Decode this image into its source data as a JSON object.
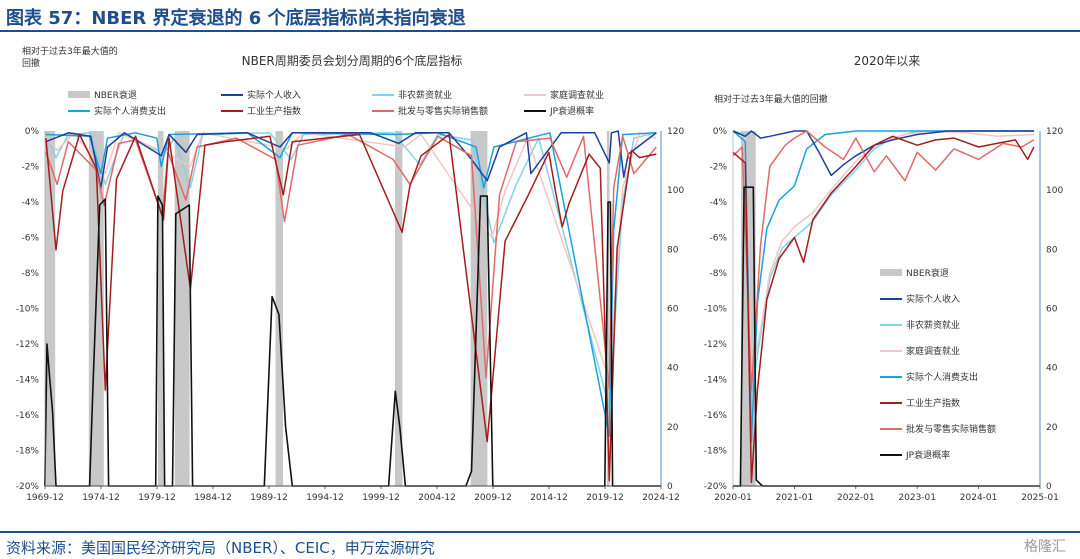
{
  "title": "图表 57：NBER 界定衰退的 6 个底层指标尚未指向衰退",
  "source": "资料来源：美国国民经济研究局（NBER）、CEIC，申万宏源研究",
  "watermark": "格隆汇",
  "colors": {
    "title": "#1f4e8c",
    "recession": "#c8c8c8",
    "income": "#1f3f99",
    "payroll": "#7fd3ea",
    "household": "#f3c6c2",
    "consumption": "#19a3dc",
    "industrial": "#a51c1c",
    "sales": "#e06a6a",
    "jp": "#111111",
    "right_axis": "#2b6fb5"
  },
  "chart_data": [
    {
      "type": "line",
      "title": "NBER周期委员会划分周期的6个底层指标",
      "left_axis_title_line1": "相对于过去3年最大值的",
      "left_axis_title_line2": "回撤",
      "ylim": [
        -20,
        0
      ],
      "y_ticks": [
        "0%",
        "-2%",
        "-4%",
        "-6%",
        "-8%",
        "-10%",
        "-12%",
        "-14%",
        "-16%",
        "-18%",
        "-20%"
      ],
      "y2lim": [
        0,
        120
      ],
      "y2_ticks": [
        "120",
        "100",
        "80",
        "60",
        "40",
        "20",
        "0"
      ],
      "x_range": [
        1969.92,
        2024.92
      ],
      "x_ticks": [
        "1969-12",
        "1974-12",
        "1979-12",
        "1984-12",
        "1989-12",
        "1994-12",
        "1999-12",
        "2004-12",
        "2009-12",
        "2014-12",
        "2019-12",
        "2024-12"
      ],
      "x_tick_values": [
        1969.92,
        1974.92,
        1979.92,
        1984.92,
        1989.92,
        1994.92,
        1999.92,
        2004.92,
        2009.92,
        2014.92,
        2019.92,
        2024.92
      ],
      "legend": [
        "NBER衰退",
        "实际个人收入",
        "非农薪资就业",
        "家庭调查就业",
        "实际个人消费支出",
        "工业生产指数",
        "批发与零售实际销售额",
        "JP衰退概率"
      ],
      "recessions": [
        [
          1969.92,
          1970.83
        ],
        [
          1973.83,
          1975.17
        ],
        [
          1980.0,
          1980.5
        ],
        [
          1981.5,
          1982.83
        ],
        [
          1990.5,
          1991.17
        ],
        [
          2001.17,
          2001.83
        ],
        [
          2007.92,
          2009.42
        ],
        [
          2020.08,
          2020.33
        ]
      ],
      "series": [
        {
          "name": "实际个人收入",
          "key": "income",
          "axis": "left",
          "x": [
            1970,
            1972,
            1974,
            1974.9,
            1975.5,
            1977,
            1980.3,
            1981,
            1982.5,
            1983.5,
            1988,
            1990.9,
            1992,
            1999,
            2001.5,
            2003,
            2006,
            2008,
            2009.4,
            2010.5,
            2012.9,
            2013.3,
            2016,
            2019,
            2020.3,
            2020.5,
            2021.1,
            2021.6,
            2022,
            2024.5
          ],
          "values": [
            -0.6,
            -0.1,
            -0.3,
            -3.2,
            -0.9,
            -0.1,
            -1.4,
            -0.2,
            -1.2,
            -0.2,
            -0.1,
            -0.9,
            -0.1,
            -0.1,
            -0.7,
            -0.1,
            -0.1,
            -1.6,
            -2.8,
            -0.9,
            -0.1,
            -2.4,
            -0.1,
            -0.1,
            -1.8,
            -0.1,
            0,
            -2.6,
            -1.3,
            -0.1
          ]
        },
        {
          "name": "非农薪资就业",
          "key": "payroll",
          "axis": "left",
          "x": [
            1970,
            1970.9,
            1972,
            1974,
            1975.3,
            1977,
            1980.5,
            1981.5,
            1982.9,
            1984,
            1990,
            1991.9,
            1993,
            2001,
            2003.4,
            2005,
            2008,
            2010.0,
            2012,
            2014,
            2020.3,
            2021.5,
            2022.5,
            2024.5
          ],
          "values": [
            -0.1,
            -1.5,
            -0.2,
            -0.1,
            -3.0,
            -0.1,
            -1.3,
            -0.4,
            -3.2,
            -0.2,
            -0.1,
            -1.6,
            -0.2,
            -0.1,
            -1.9,
            -0.2,
            -0.5,
            -6.3,
            -3.0,
            -0.4,
            -15.6,
            -4.0,
            -0.4,
            -0.1
          ]
        },
        {
          "name": "家庭调查就业",
          "key": "household",
          "axis": "left",
          "x": [
            1970,
            1971,
            1972.5,
            1975.3,
            1976.5,
            1980.6,
            1982.9,
            1984,
            1991.5,
            1993,
            2002,
            2003.5,
            2009.8,
            2011,
            2013,
            2020.3,
            2021.5,
            2023,
            2024.5
          ],
          "values": [
            -0.3,
            -1.1,
            -0.1,
            -2.4,
            -0.1,
            -1.2,
            -2.0,
            -0.1,
            -1.0,
            -0.1,
            -0.9,
            -0.2,
            -6.0,
            -3.4,
            -0.4,
            -14.0,
            -3.2,
            -0.1,
            -0.4
          ]
        },
        {
          "name": "实际个人消费支出",
          "key": "consumption",
          "axis": "left",
          "x": [
            1970,
            1973.9,
            1974.9,
            1975.5,
            1978,
            1979.9,
            1980.3,
            1981,
            1988,
            1990.9,
            1992,
            2001,
            2005,
            2008.4,
            2009.1,
            2010,
            2015,
            2020.3,
            2020.7,
            2021.5,
            2024.5
          ],
          "values": [
            -0.2,
            -0.3,
            -2.4,
            -0.4,
            -0.1,
            -0.4,
            -2.0,
            -0.2,
            -0.1,
            -1.5,
            -0.1,
            -0.2,
            -0.1,
            -0.9,
            -3.2,
            -0.9,
            -0.1,
            -17.2,
            -5.6,
            -0.2,
            -0.1
          ]
        },
        {
          "name": "工业生产指数",
          "key": "industrial",
          "axis": "left",
          "x": [
            1970,
            1970.9,
            1971.5,
            1973,
            1974.5,
            1975.3,
            1976.3,
            1978,
            1980.5,
            1981,
            1982.9,
            1984.2,
            1986,
            1990,
            1991.2,
            1992,
            1998,
            2001.8,
            2002.5,
            2003.5,
            2006,
            2009.4,
            2011,
            2013,
            2014.9,
            2015.5,
            2016.1,
            2016.7,
            2018.5,
            2019.5,
            2020.3,
            2021.0,
            2022.3,
            2023,
            2024.5
          ],
          "values": [
            -0.4,
            -6.7,
            -3.4,
            -0.2,
            -2.1,
            -14.6,
            -2.7,
            -0.3,
            -5.0,
            -0.4,
            -8.9,
            -0.8,
            -0.6,
            -0.3,
            -3.6,
            -0.6,
            -0.2,
            -5.7,
            -3.1,
            -1.4,
            -0.2,
            -17.5,
            -6.2,
            -3.7,
            -1.2,
            -3.4,
            -5.4,
            -4.1,
            -1.3,
            -2.1,
            -19.7,
            -6.6,
            -1.1,
            -1.5,
            -1.3
          ]
        },
        {
          "name": "批发与零售实际销售额",
          "key": "sales",
          "axis": "left",
          "x": [
            1970,
            1971,
            1972,
            1974.5,
            1975.2,
            1976.5,
            1978,
            1980.4,
            1980.9,
            1982.5,
            1983.5,
            1987,
            1990.5,
            1991.3,
            1992.5,
            1997,
            2001,
            2002.5,
            2005,
            2008,
            2009.3,
            2010.5,
            2012,
            2015,
            2016.5,
            2018,
            2020.3,
            2020.7,
            2021.5,
            2022.5,
            2024.5
          ],
          "values": [
            -1.2,
            -3.0,
            -0.6,
            -2.2,
            -4.2,
            -0.7,
            -0.5,
            -4.8,
            -1.2,
            -3.9,
            -0.9,
            -0.4,
            -1.6,
            -5.1,
            -0.8,
            -0.2,
            -1.6,
            -3.0,
            -0.3,
            -1.4,
            -13.9,
            -3.6,
            -0.6,
            -0.4,
            -2.6,
            -0.3,
            -14.5,
            -3.2,
            -0.3,
            -2.4,
            -0.9
          ]
        },
        {
          "name": "JP衰退概率",
          "key": "jp",
          "axis": "right",
          "x": [
            1969.9,
            1970.1,
            1970.3,
            1970.6,
            1970.9,
            1971.1,
            1973.9,
            1974.2,
            1974.8,
            1975.3,
            1975.6,
            1979.8,
            1980.0,
            1980.4,
            1980.6,
            1981.3,
            1981.6,
            1982.8,
            1983.1,
            1989.5,
            1990.2,
            1990.8,
            1991.4,
            1992.0,
            2000.6,
            2001.2,
            2001.6,
            2002.1,
            2007.5,
            2008.0,
            2008.8,
            2009.4,
            2009.9,
            2019.9,
            2020.2,
            2020.4,
            2020.6,
            2024.9
          ],
          "values": [
            0,
            48,
            38,
            25,
            0,
            0,
            0,
            33,
            95,
            97,
            0,
            0,
            98,
            95,
            0,
            0,
            92,
            95,
            0,
            0,
            64,
            58,
            20,
            0,
            0,
            32,
            20,
            0,
            0,
            5,
            98,
            98,
            0,
            0,
            96,
            96,
            0,
            0
          ]
        }
      ]
    },
    {
      "type": "line",
      "title": "2020年以来",
      "left_axis_title": "相对于过去3年最大值的回撤",
      "ylim": [
        -20,
        0
      ],
      "y_ticks": [
        "0%",
        "-2%",
        "-4%",
        "-6%",
        "-8%",
        "-10%",
        "-12%",
        "-14%",
        "-16%",
        "-18%",
        "-20%"
      ],
      "y2lim": [
        0,
        120
      ],
      "y2_ticks": [
        "120",
        "100",
        "80",
        "60",
        "40",
        "20",
        "0"
      ],
      "x_range": [
        2020.0,
        2025.0
      ],
      "x_ticks": [
        "2020-01",
        "2021-01",
        "2022-01",
        "2023-01",
        "2024-01",
        "2025-01"
      ],
      "x_tick_values": [
        2020.0,
        2021.0,
        2022.0,
        2023.0,
        2024.0,
        2025.0
      ],
      "legend": [
        "NBER衰退",
        "实际个人收入",
        "非农薪资就业",
        "家庭调查就业",
        "实际个人消费支出",
        "工业生产指数",
        "批发与零售实际销售额",
        "JP衰退概率"
      ],
      "recessions": [
        [
          2020.13,
          2020.37
        ]
      ],
      "series": [
        {
          "name": "实际个人收入",
          "key": "income",
          "axis": "left",
          "x": [
            2020.0,
            2020.2,
            2020.3,
            2020.45,
            2020.6,
            2021.0,
            2021.2,
            2021.4,
            2021.6,
            2021.8,
            2022.0,
            2022.3,
            2022.6,
            2023.0,
            2023.5,
            2024.0,
            2024.9
          ],
          "values": [
            0,
            -0.3,
            0,
            -0.4,
            -0.3,
            0,
            0,
            -1.2,
            -2.5,
            -1.9,
            -1.4,
            -0.8,
            -0.5,
            -0.2,
            0,
            0,
            0
          ]
        },
        {
          "name": "非农薪资就业",
          "key": "payroll",
          "axis": "left",
          "x": [
            2020.0,
            2020.2,
            2020.3,
            2020.45,
            2020.6,
            2020.8,
            2021.0,
            2021.3,
            2021.6,
            2022.0,
            2022.3,
            2022.6,
            2023.0,
            2024.9
          ],
          "values": [
            0,
            -0.2,
            -14.8,
            -11.5,
            -8.3,
            -6.6,
            -6.0,
            -5.1,
            -3.6,
            -2.2,
            -1.0,
            -0.4,
            0,
            0
          ]
        },
        {
          "name": "家庭调查就业",
          "key": "household",
          "axis": "left",
          "x": [
            2020.0,
            2020.2,
            2020.3,
            2020.45,
            2020.6,
            2020.8,
            2021.0,
            2021.3,
            2021.6,
            2022.0,
            2022.4,
            2022.8,
            2023.2,
            2023.8,
            2024.3,
            2024.9
          ],
          "values": [
            0,
            -0.3,
            -13.8,
            -11.2,
            -8.0,
            -6.2,
            -5.4,
            -4.6,
            -3.3,
            -1.7,
            -0.6,
            -0.2,
            0,
            -0.1,
            -0.3,
            -0.2
          ]
        },
        {
          "name": "实际个人消费支出",
          "key": "consumption",
          "axis": "left",
          "x": [
            2020.0,
            2020.2,
            2020.3,
            2020.4,
            2020.55,
            2020.75,
            2021.0,
            2021.2,
            2021.5,
            2022.0,
            2024.9
          ],
          "values": [
            0,
            -0.6,
            -17.5,
            -9.6,
            -5.5,
            -3.9,
            -3.1,
            -1.0,
            -0.2,
            0,
            0
          ]
        },
        {
          "name": "工业生产指数",
          "key": "industrial",
          "axis": "left",
          "x": [
            2020.0,
            2020.2,
            2020.3,
            2020.4,
            2020.55,
            2020.75,
            2021.0,
            2021.15,
            2021.3,
            2021.6,
            2022.0,
            2022.3,
            2022.6,
            2023.0,
            2023.3,
            2023.6,
            2024.0,
            2024.3,
            2024.6,
            2024.8,
            2024.9
          ],
          "values": [
            -1.2,
            -1.8,
            -19.8,
            -14.5,
            -9.5,
            -7.2,
            -6.0,
            -7.4,
            -5.0,
            -3.5,
            -2.0,
            -0.8,
            -0.3,
            -0.8,
            -0.5,
            -0.4,
            -0.9,
            -0.7,
            -0.5,
            -1.6,
            -0.9
          ]
        },
        {
          "name": "批发与零售实际销售额",
          "key": "sales",
          "axis": "left",
          "x": [
            2020.0,
            2020.15,
            2020.3,
            2020.45,
            2020.6,
            2020.85,
            2021.0,
            2021.2,
            2021.5,
            2021.8,
            2022.0,
            2022.3,
            2022.5,
            2022.8,
            2023.0,
            2023.3,
            2023.6,
            2024.0,
            2024.4,
            2024.7,
            2024.9
          ],
          "values": [
            -1.4,
            -0.9,
            -14.6,
            -6.4,
            -2.0,
            -0.8,
            -0.4,
            0,
            -0.9,
            -1.6,
            -0.4,
            -2.3,
            -1.4,
            -2.8,
            -1.2,
            -2.2,
            -1.0,
            -1.6,
            -0.7,
            -0.9,
            -0.5
          ]
        },
        {
          "name": "JP衰退概率",
          "key": "jp",
          "axis": "right",
          "x": [
            2020.0,
            2020.12,
            2020.18,
            2020.33,
            2020.38,
            2020.48,
            2025.0
          ],
          "values": [
            0,
            0,
            101,
            101,
            2,
            0,
            0
          ]
        }
      ]
    }
  ]
}
